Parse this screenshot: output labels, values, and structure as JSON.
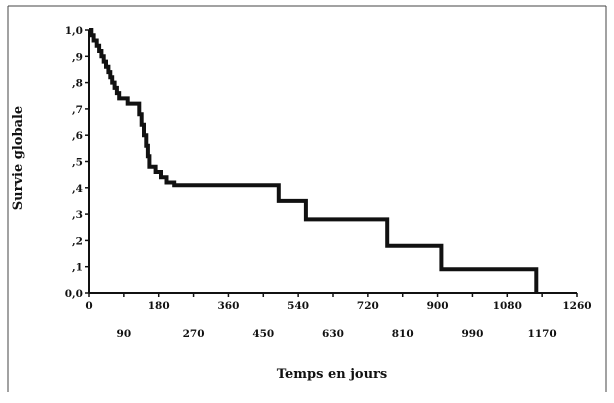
{
  "chart_data": {
    "type": "line",
    "step": true,
    "xlabel": "Temps en jours",
    "ylabel": "Survie globale",
    "xlim": [
      0,
      1260
    ],
    "ylim": [
      0,
      1
    ],
    "xticks_top": [
      "0",
      "180",
      "360",
      "540",
      "720",
      "900",
      "1080",
      "1260"
    ],
    "xticks_top_values": [
      0,
      180,
      360,
      540,
      720,
      900,
      1080,
      1260
    ],
    "xticks_bottom": [
      "90",
      "270",
      "450",
      "630",
      "810",
      "990",
      "1170"
    ],
    "xticks_bottom_values": [
      90,
      270,
      450,
      630,
      810,
      990,
      1170
    ],
    "yticks": [
      "0,0",
      ",1",
      ",2",
      ",3",
      ",4",
      ",5",
      ",6",
      ",7",
      ",8",
      ",9",
      "1,0"
    ],
    "yticks_values": [
      0,
      0.1,
      0.2,
      0.3,
      0.4,
      0.5,
      0.6,
      0.7,
      0.8,
      0.9,
      1.0
    ],
    "grid": false,
    "series": [
      {
        "color": "#111111",
        "points": [
          [
            0,
            1.0
          ],
          [
            6,
            1.0
          ],
          [
            6,
            0.98
          ],
          [
            12,
            0.98
          ],
          [
            12,
            0.96
          ],
          [
            20,
            0.96
          ],
          [
            20,
            0.94
          ],
          [
            26,
            0.94
          ],
          [
            26,
            0.92
          ],
          [
            32,
            0.92
          ],
          [
            32,
            0.9
          ],
          [
            38,
            0.9
          ],
          [
            38,
            0.88
          ],
          [
            44,
            0.88
          ],
          [
            44,
            0.86
          ],
          [
            50,
            0.86
          ],
          [
            50,
            0.84
          ],
          [
            55,
            0.84
          ],
          [
            55,
            0.82
          ],
          [
            60,
            0.82
          ],
          [
            60,
            0.8
          ],
          [
            66,
            0.8
          ],
          [
            66,
            0.78
          ],
          [
            72,
            0.78
          ],
          [
            72,
            0.76
          ],
          [
            78,
            0.76
          ],
          [
            78,
            0.74
          ],
          [
            100,
            0.74
          ],
          [
            100,
            0.72
          ],
          [
            130,
            0.72
          ],
          [
            130,
            0.68
          ],
          [
            136,
            0.68
          ],
          [
            136,
            0.64
          ],
          [
            142,
            0.64
          ],
          [
            142,
            0.6
          ],
          [
            148,
            0.6
          ],
          [
            148,
            0.56
          ],
          [
            152,
            0.56
          ],
          [
            152,
            0.52
          ],
          [
            156,
            0.52
          ],
          [
            156,
            0.48
          ],
          [
            172,
            0.48
          ],
          [
            172,
            0.46
          ],
          [
            186,
            0.46
          ],
          [
            186,
            0.44
          ],
          [
            200,
            0.44
          ],
          [
            200,
            0.42
          ],
          [
            220,
            0.42
          ],
          [
            220,
            0.41
          ],
          [
            490,
            0.41
          ],
          [
            490,
            0.35
          ],
          [
            560,
            0.35
          ],
          [
            560,
            0.28
          ],
          [
            770,
            0.28
          ],
          [
            770,
            0.18
          ],
          [
            910,
            0.18
          ],
          [
            910,
            0.09
          ],
          [
            1155,
            0.09
          ],
          [
            1155,
            0.0
          ]
        ]
      }
    ]
  }
}
